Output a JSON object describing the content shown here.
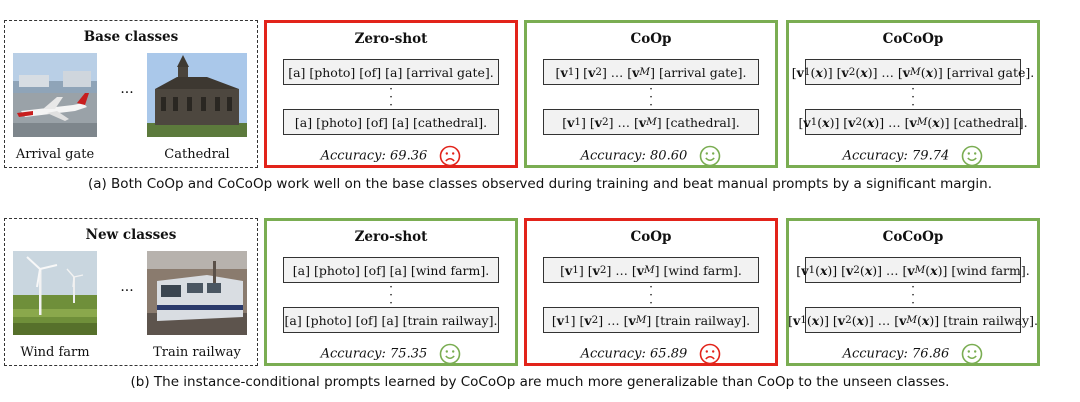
{
  "row_a": {
    "classes_title": "Base classes",
    "left_label": "Arrival gate",
    "right_label": "Cathedral",
    "ellipsis": "···",
    "panels": [
      {
        "title": "Zero-shot",
        "prompt_top": "[a] [photo] [of] [a] [arrival gate].",
        "prompt_bot": "[a] [photo] [of] [a] [cathedral].",
        "accuracy_label": "Accuracy:",
        "accuracy": "69.36",
        "mood": "sad",
        "border": "#e2231a"
      },
      {
        "title": "CoOp",
        "prompt_top": "[arrival gate].",
        "prompt_bot": "[cathedral].",
        "accuracy_label": "Accuracy:",
        "accuracy": "80.60",
        "mood": "happy",
        "border": "#7aad52"
      },
      {
        "title": "CoCoOp",
        "prompt_top": "[arrival gate].",
        "prompt_bot": "[cathedral].",
        "accuracy_label": "Accuracy:",
        "accuracy": "79.74",
        "mood": "happy",
        "border": "#7aad52"
      }
    ],
    "caption": "(a) Both CoOp and CoCoOp work well on the base classes observed during training and beat manual prompts by a significant margin."
  },
  "row_b": {
    "classes_title": "New classes",
    "left_label": "Wind farm",
    "right_label": "Train railway",
    "ellipsis": "···",
    "panels": [
      {
        "title": "Zero-shot",
        "prompt_top": "[a] [photo] [of] [a] [wind farm].",
        "prompt_bot": "[a] [photo] [of] [a] [train railway].",
        "accuracy_label": "Accuracy:",
        "accuracy": "75.35",
        "mood": "happy",
        "border": "#7aad52"
      },
      {
        "title": "CoOp",
        "prompt_top": "[wind farm].",
        "prompt_bot": "[train railway].",
        "accuracy_label": "Accuracy:",
        "accuracy": "65.89",
        "mood": "sad",
        "border": "#e2231a"
      },
      {
        "title": "CoCoOp",
        "prompt_top": "[wind farm].",
        "prompt_bot": "[train railway].",
        "accuracy_label": "Accuracy:",
        "accuracy": "76.86",
        "mood": "happy",
        "border": "#7aad52"
      }
    ],
    "caption": "(b) The instance-conditional prompts learned by CoCoOp are much more generalizable than CoOp to the unseen classes."
  },
  "colors": {
    "happy": "#7aad52",
    "sad": "#e2231a",
    "prompt_bg": "#f2f2f2"
  }
}
